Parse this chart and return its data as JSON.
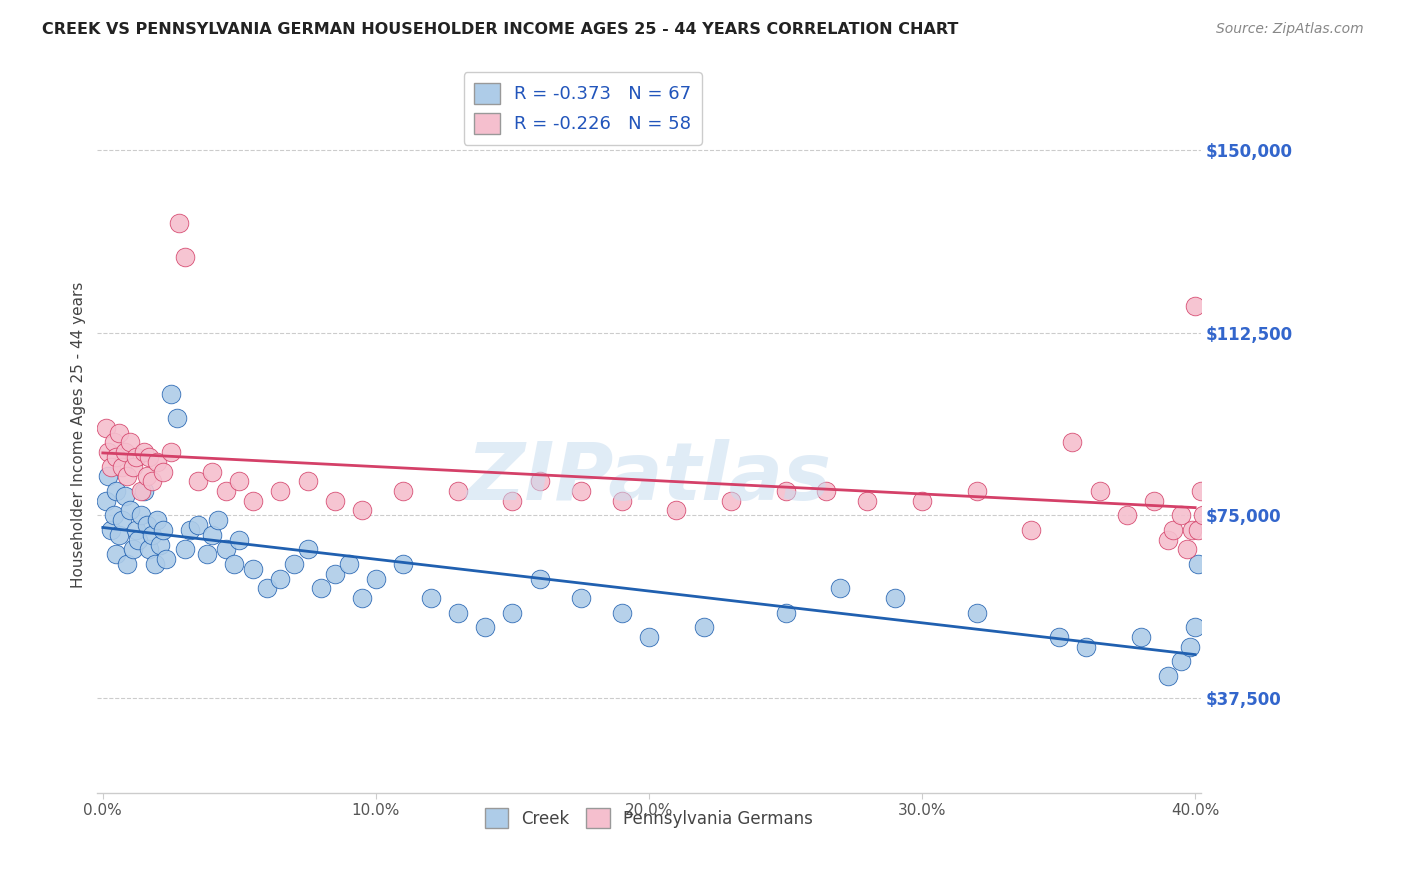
{
  "title": "CREEK VS PENNSYLVANIA GERMAN HOUSEHOLDER INCOME AGES 25 - 44 YEARS CORRELATION CHART",
  "source": "Source: ZipAtlas.com",
  "ylabel": "Householder Income Ages 25 - 44 years",
  "creek_R": -0.373,
  "creek_N": 67,
  "pg_R": -0.226,
  "pg_N": 58,
  "creek_color": "#aecce8",
  "pg_color": "#f5bfce",
  "creek_line_color": "#2060b0",
  "pg_line_color": "#d44068",
  "watermark": "ZIPatlas",
  "ytick_labels": [
    "$37,500",
    "$75,000",
    "$112,500",
    "$150,000"
  ],
  "ytick_values": [
    37500,
    75000,
    112500,
    150000
  ],
  "xlim": [
    -0.002,
    0.402
  ],
  "ylim": [
    18000,
    165000
  ],
  "xtick_labels": [
    "0.0%",
    "10.0%",
    "20.0%",
    "30.0%",
    "40.0%"
  ],
  "xtick_values": [
    0.0,
    0.1,
    0.2,
    0.3,
    0.4
  ],
  "creek_x": [
    0.001,
    0.002,
    0.003,
    0.004,
    0.005,
    0.005,
    0.006,
    0.007,
    0.008,
    0.009,
    0.01,
    0.011,
    0.012,
    0.013,
    0.014,
    0.015,
    0.016,
    0.017,
    0.018,
    0.019,
    0.02,
    0.021,
    0.022,
    0.023,
    0.025,
    0.027,
    0.03,
    0.032,
    0.035,
    0.038,
    0.04,
    0.042,
    0.045,
    0.048,
    0.05,
    0.055,
    0.06,
    0.065,
    0.07,
    0.075,
    0.08,
    0.085,
    0.09,
    0.095,
    0.1,
    0.11,
    0.12,
    0.13,
    0.14,
    0.15,
    0.16,
    0.175,
    0.19,
    0.2,
    0.22,
    0.25,
    0.27,
    0.29,
    0.32,
    0.35,
    0.36,
    0.38,
    0.39,
    0.395,
    0.398,
    0.4,
    0.401
  ],
  "creek_y": [
    78000,
    83000,
    72000,
    75000,
    80000,
    67000,
    71000,
    74000,
    79000,
    65000,
    76000,
    68000,
    72000,
    70000,
    75000,
    80000,
    73000,
    68000,
    71000,
    65000,
    74000,
    69000,
    72000,
    66000,
    100000,
    95000,
    68000,
    72000,
    73000,
    67000,
    71000,
    74000,
    68000,
    65000,
    70000,
    64000,
    60000,
    62000,
    65000,
    68000,
    60000,
    63000,
    65000,
    58000,
    62000,
    65000,
    58000,
    55000,
    52000,
    55000,
    62000,
    58000,
    55000,
    50000,
    52000,
    55000,
    60000,
    58000,
    55000,
    50000,
    48000,
    50000,
    42000,
    45000,
    48000,
    52000,
    65000
  ],
  "pg_x": [
    0.001,
    0.002,
    0.003,
    0.004,
    0.005,
    0.006,
    0.007,
    0.008,
    0.009,
    0.01,
    0.011,
    0.012,
    0.014,
    0.015,
    0.016,
    0.017,
    0.018,
    0.02,
    0.022,
    0.025,
    0.028,
    0.03,
    0.035,
    0.04,
    0.045,
    0.05,
    0.055,
    0.065,
    0.075,
    0.085,
    0.095,
    0.11,
    0.13,
    0.15,
    0.16,
    0.175,
    0.19,
    0.21,
    0.23,
    0.25,
    0.265,
    0.28,
    0.3,
    0.32,
    0.34,
    0.355,
    0.365,
    0.375,
    0.385,
    0.39,
    0.392,
    0.395,
    0.397,
    0.399,
    0.4,
    0.401,
    0.402,
    0.403
  ],
  "pg_y": [
    93000,
    88000,
    85000,
    90000,
    87000,
    92000,
    85000,
    88000,
    83000,
    90000,
    85000,
    87000,
    80000,
    88000,
    83000,
    87000,
    82000,
    86000,
    84000,
    88000,
    135000,
    128000,
    82000,
    84000,
    80000,
    82000,
    78000,
    80000,
    82000,
    78000,
    76000,
    80000,
    80000,
    78000,
    82000,
    80000,
    78000,
    76000,
    78000,
    80000,
    80000,
    78000,
    78000,
    80000,
    72000,
    90000,
    80000,
    75000,
    78000,
    70000,
    72000,
    75000,
    68000,
    72000,
    118000,
    72000,
    80000,
    75000
  ]
}
